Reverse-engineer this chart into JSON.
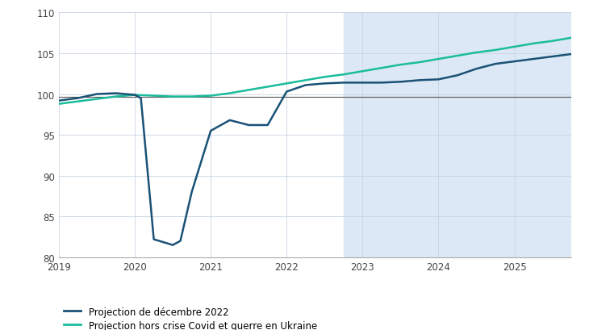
{
  "background_color": "#ffffff",
  "shaded_region_start": 2022.75,
  "shaded_region_end": 2025.75,
  "shaded_color": "#dce8f5",
  "xlim": [
    2019.0,
    2025.75
  ],
  "ylim": [
    80,
    110
  ],
  "yticks": [
    80,
    85,
    90,
    95,
    100,
    105,
    110
  ],
  "xticks": [
    2019,
    2020,
    2021,
    2022,
    2023,
    2024,
    2025
  ],
  "grid_color": "#c8d4e0",
  "line1_color": "#1a5276",
  "line2_color": "#1abc9c",
  "legend_label1": "Projection de décembre 2022",
  "legend_label2": "Projection hors crise Covid et guerre en Ukraine",
  "line1_x": [
    2019.0,
    2019.25,
    2019.5,
    2019.75,
    2020.0,
    2020.08,
    2020.25,
    2020.5,
    2020.6,
    2020.75,
    2021.0,
    2021.25,
    2021.5,
    2021.75,
    2022.0,
    2022.25,
    2022.5,
    2022.75,
    2023.0,
    2023.25,
    2023.5,
    2023.75,
    2024.0,
    2024.25,
    2024.5,
    2024.75,
    2025.0,
    2025.25,
    2025.5,
    2025.75
  ],
  "line1_y": [
    99.2,
    99.5,
    100.0,
    100.1,
    99.9,
    99.5,
    82.2,
    81.5,
    82.0,
    88.0,
    95.5,
    96.8,
    96.2,
    96.2,
    100.3,
    101.1,
    101.3,
    101.4,
    101.4,
    101.4,
    101.5,
    101.7,
    101.8,
    102.3,
    103.1,
    103.7,
    104.0,
    104.3,
    104.6,
    104.9
  ],
  "line2_x": [
    2019.0,
    2019.25,
    2019.5,
    2019.75,
    2020.0,
    2020.25,
    2020.5,
    2020.75,
    2021.0,
    2021.25,
    2021.5,
    2021.75,
    2022.0,
    2022.25,
    2022.5,
    2022.75,
    2023.0,
    2023.25,
    2023.5,
    2023.75,
    2024.0,
    2024.25,
    2024.5,
    2024.75,
    2025.0,
    2025.25,
    2025.5,
    2025.75
  ],
  "line2_y": [
    98.8,
    99.1,
    99.4,
    99.7,
    99.9,
    99.8,
    99.7,
    99.7,
    99.8,
    100.1,
    100.5,
    100.9,
    101.3,
    101.7,
    102.1,
    102.4,
    102.8,
    103.2,
    103.6,
    103.9,
    104.3,
    104.7,
    105.1,
    105.4,
    105.8,
    106.2,
    106.5,
    106.9
  ],
  "hline_y": 99.7,
  "hline_color": "#555555",
  "hline_linewidth": 0.8
}
